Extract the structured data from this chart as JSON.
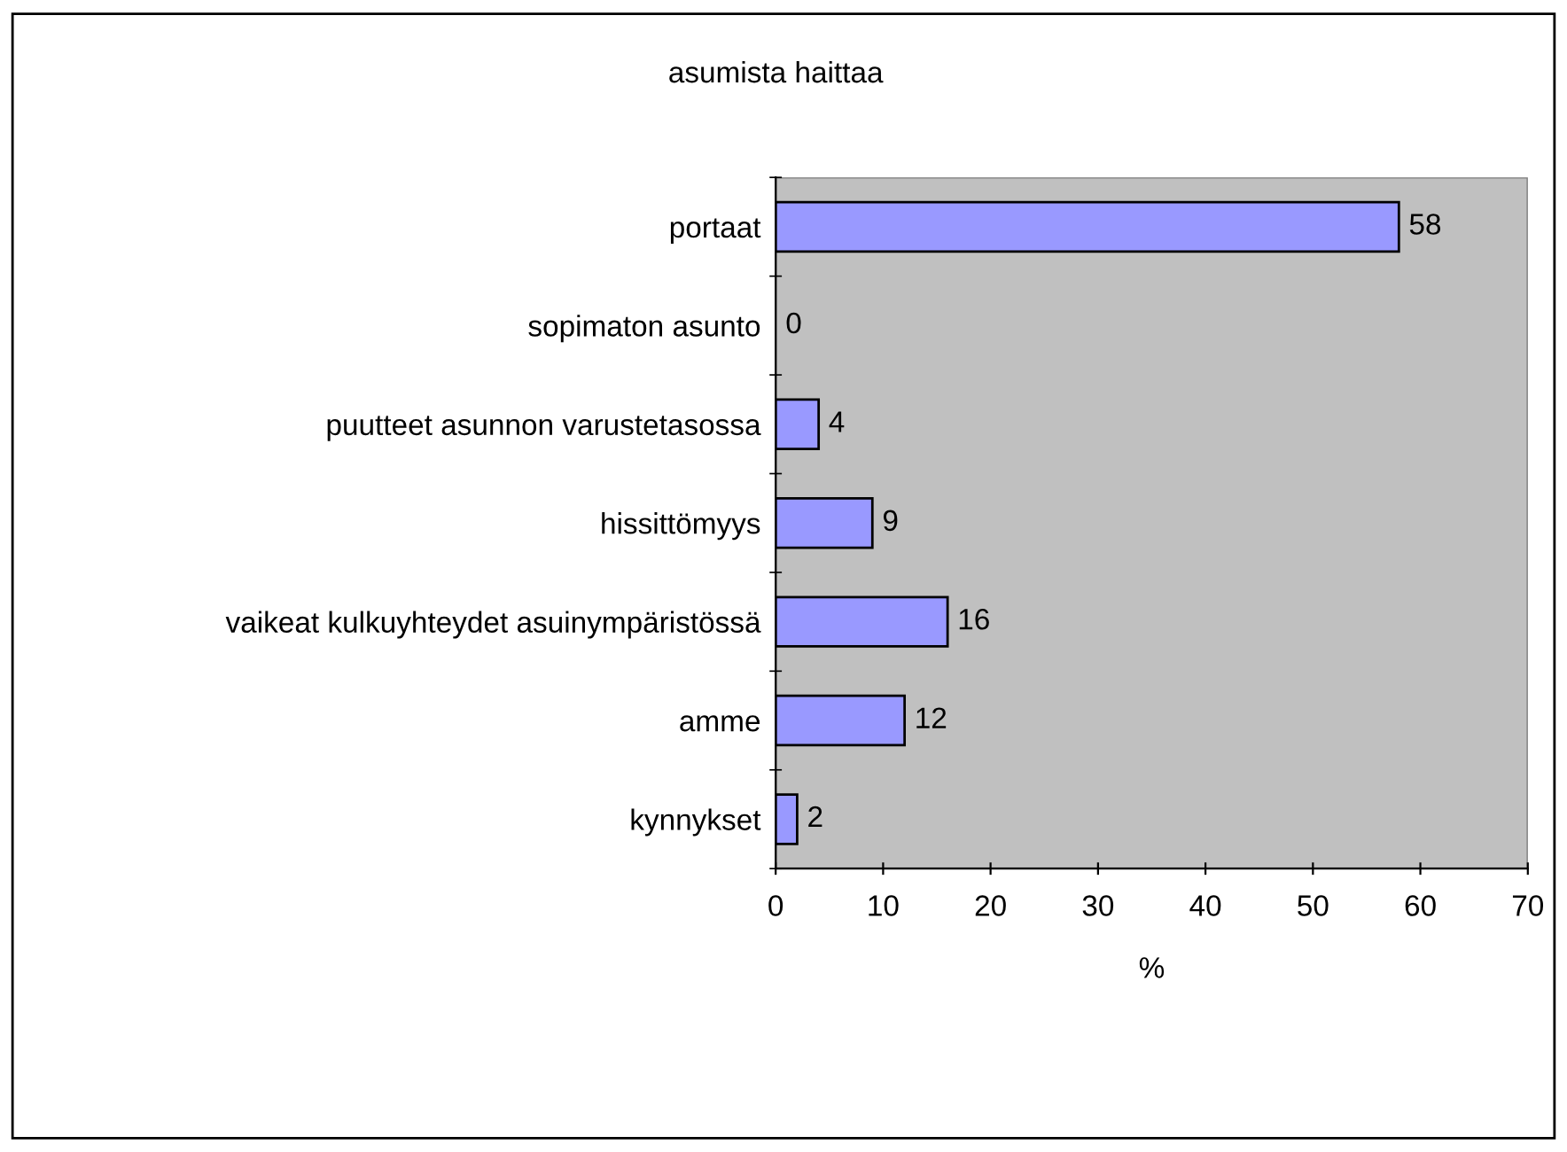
{
  "chart_data": {
    "type": "bar",
    "orientation": "horizontal",
    "title": "asumista haittaa",
    "xlabel": "%",
    "categories": [
      "portaat",
      "sopimaton asunto",
      "puutteet asunnon varustetasossa",
      "hissittömyys",
      "vaikeat kulkuyhteydet asuinympäristössä",
      "amme",
      "kynnykset"
    ],
    "values": [
      58,
      0,
      4,
      9,
      16,
      12,
      2
    ],
    "color": "#9999ff",
    "xlim": [
      0,
      70
    ],
    "xticks": [
      0,
      10,
      20,
      30,
      40,
      50,
      60,
      70
    ],
    "data_labels": true,
    "grid": false
  }
}
